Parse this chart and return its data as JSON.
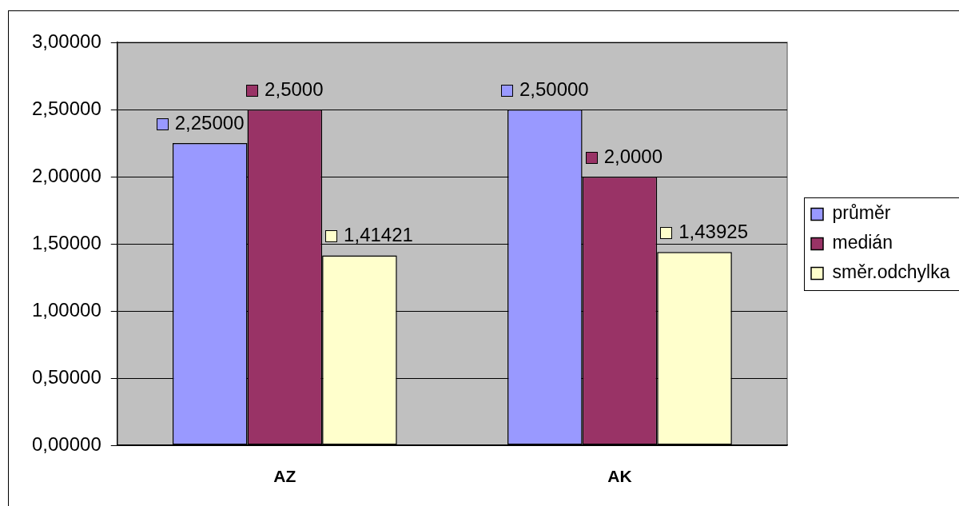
{
  "chart_data": {
    "type": "bar",
    "categories": [
      "AZ",
      "AK"
    ],
    "series": [
      {
        "name": "průměr",
        "color": "#9999ff",
        "values": [
          2.25,
          2.5
        ],
        "value_labels": [
          "2,25000",
          "2,50000"
        ]
      },
      {
        "name": "medián",
        "color": "#993366",
        "values": [
          2.5,
          2.0
        ],
        "value_labels": [
          "2,5000",
          "2,0000"
        ]
      },
      {
        "name": "směr.odchylka",
        "color": "#ffffcc",
        "values": [
          1.41421,
          1.43925
        ],
        "value_labels": [
          "1,41421",
          "1,43925"
        ]
      }
    ],
    "ylim": [
      0,
      3
    ],
    "yticks": [
      {
        "value": 0,
        "label": "0,00000"
      },
      {
        "value": 0.5,
        "label": "0,50000"
      },
      {
        "value": 1,
        "label": "1,00000"
      },
      {
        "value": 1.5,
        "label": "1,50000"
      },
      {
        "value": 2,
        "label": "2,00000"
      },
      {
        "value": 2.5,
        "label": "2,50000"
      },
      {
        "value": 3,
        "label": "3,00000"
      }
    ],
    "grid": "y",
    "legend": "right"
  }
}
